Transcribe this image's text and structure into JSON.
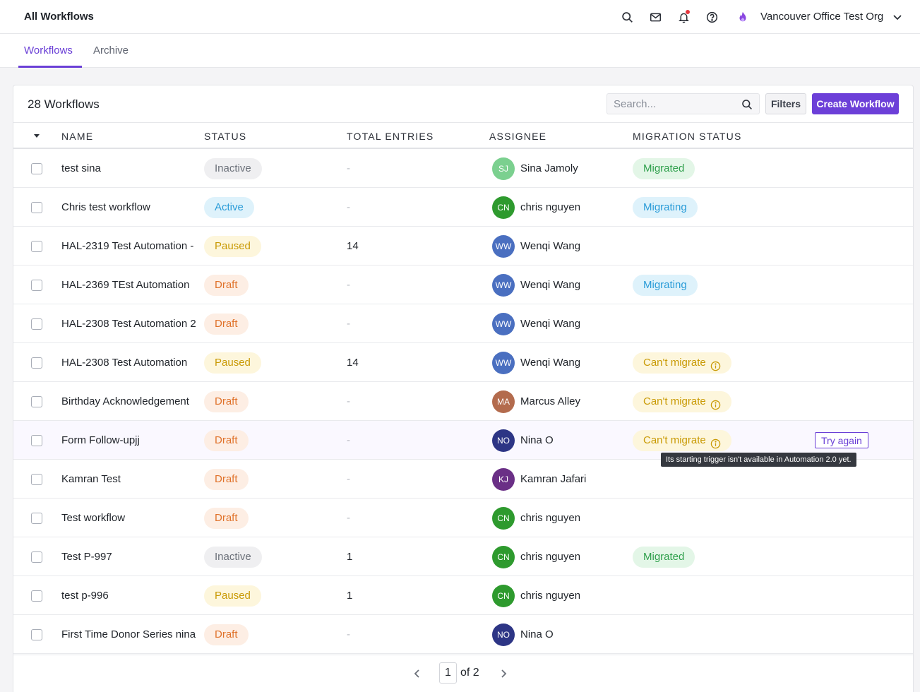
{
  "header": {
    "title": "All Workflows",
    "org_name": "Vancouver Office Test Org",
    "icons": [
      "search-icon",
      "mail-icon",
      "bell-icon",
      "help-icon",
      "org-logo",
      "chevron-down-icon"
    ]
  },
  "tabs": [
    {
      "label": "Workflows",
      "active": true
    },
    {
      "label": "Archive",
      "active": false
    }
  ],
  "toolbar": {
    "count_label": "28 Workflows",
    "search_placeholder": "Search...",
    "filters_label": "Filters",
    "create_label": "Create Workflow"
  },
  "columns": [
    "NAME",
    "STATUS",
    "TOTAL ENTRIES",
    "ASSIGNEE",
    "MIGRATION STATUS"
  ],
  "rows": [
    {
      "name": "test sina",
      "status": "Inactive",
      "entries": "-",
      "initials": "SJ",
      "avatar_color": "#7bd08f",
      "assignee": "Sina Jamoly",
      "migration": "Migrated"
    },
    {
      "name": "Chris test workflow",
      "status": "Active",
      "entries": "-",
      "initials": "CN",
      "avatar_color": "#2e9a2e",
      "assignee": "chris nguyen",
      "migration": "Migrating"
    },
    {
      "name": "HAL-2319 Test Automation -",
      "status": "Paused",
      "entries": "14",
      "initials": "WW",
      "avatar_color": "#4a6fc0",
      "assignee": "Wenqi Wang",
      "migration": ""
    },
    {
      "name": "HAL-2369 TEst Automation",
      "status": "Draft",
      "entries": "-",
      "initials": "WW",
      "avatar_color": "#4a6fc0",
      "assignee": "Wenqi Wang",
      "migration": "Migrating"
    },
    {
      "name": "HAL-2308 Test Automation 2",
      "status": "Draft",
      "entries": "-",
      "initials": "WW",
      "avatar_color": "#4a6fc0",
      "assignee": "Wenqi Wang",
      "migration": ""
    },
    {
      "name": "HAL-2308 Test Automation",
      "status": "Paused",
      "entries": "14",
      "initials": "WW",
      "avatar_color": "#4a6fc0",
      "assignee": "Wenqi Wang",
      "migration": "Can't migrate"
    },
    {
      "name": "Birthday Acknowledgement",
      "status": "Draft",
      "entries": "-",
      "initials": "MA",
      "avatar_color": "#b36b4d",
      "assignee": "Marcus Alley",
      "migration": "Can't migrate"
    },
    {
      "name": "Form Follow-upjj",
      "status": "Draft",
      "entries": "-",
      "initials": "NO",
      "avatar_color": "#2d3585",
      "assignee": "Nina O",
      "migration": "Can't migrate",
      "hover": true,
      "action": "Try again",
      "tooltip": "Its starting trigger isn't available in Automation 2.0 yet."
    },
    {
      "name": "Kamran Test",
      "status": "Draft",
      "entries": "-",
      "initials": "KJ",
      "avatar_color": "#6a2f86",
      "assignee": "Kamran Jafari",
      "migration": ""
    },
    {
      "name": "Test workflow",
      "status": "Draft",
      "entries": "-",
      "initials": "CN",
      "avatar_color": "#2e9a2e",
      "assignee": "chris nguyen",
      "migration": ""
    },
    {
      "name": "Test P-997",
      "status": "Inactive",
      "entries": "1",
      "initials": "CN",
      "avatar_color": "#2e9a2e",
      "assignee": "chris nguyen",
      "migration": "Migrated"
    },
    {
      "name": "test p-996",
      "status": "Paused",
      "entries": "1",
      "initials": "CN",
      "avatar_color": "#2e9a2e",
      "assignee": "chris nguyen",
      "migration": ""
    },
    {
      "name": "First Time Donor Series nina",
      "status": "Draft",
      "entries": "-",
      "initials": "NO",
      "avatar_color": "#2d3585",
      "assignee": "Nina O",
      "migration": ""
    }
  ],
  "pagination": {
    "current_page": "1",
    "of_label": "of 2"
  },
  "colors": {
    "accent": "#6c3fd8",
    "notification_dot": "#e5373f"
  }
}
